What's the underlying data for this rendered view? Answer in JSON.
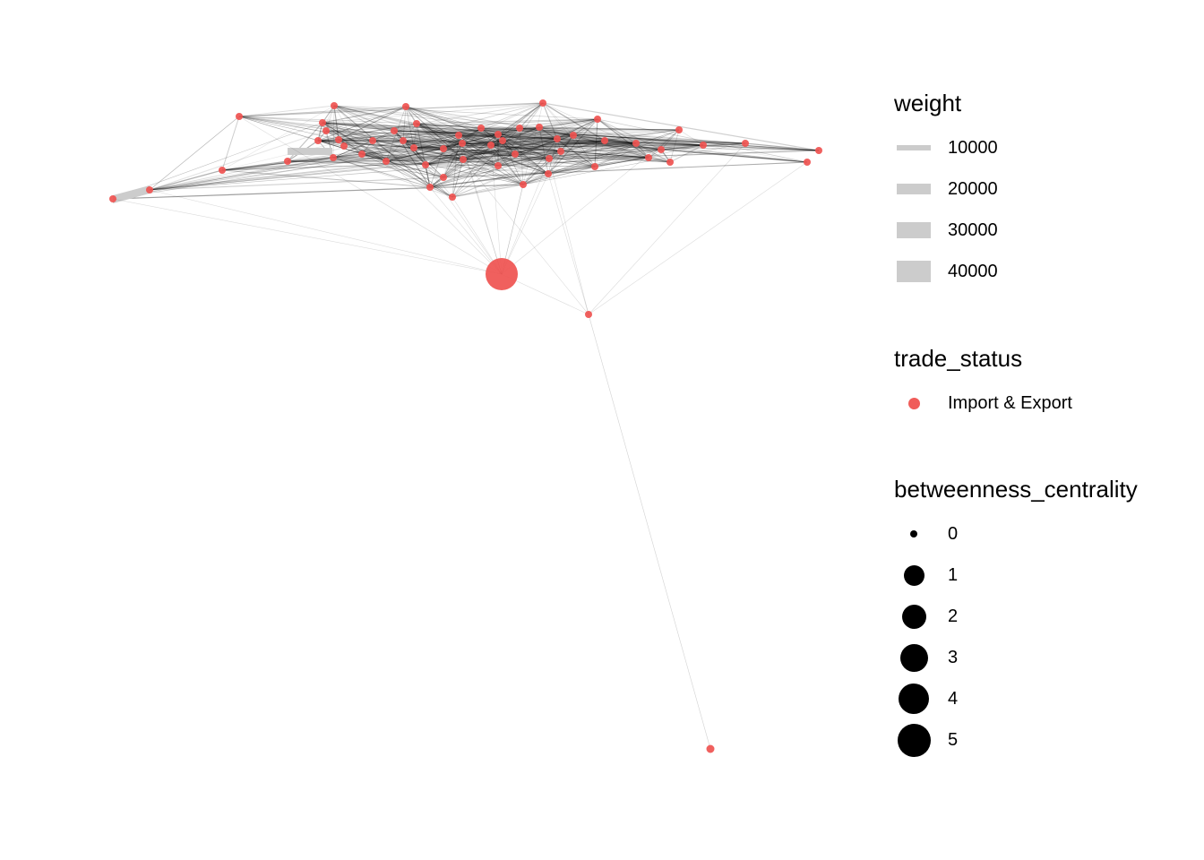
{
  "colors": {
    "node": "#ef5350",
    "edge": "#000000",
    "weight_legend": "#cccccc",
    "size_legend": "#000000"
  },
  "legend": {
    "weight": {
      "title": "weight",
      "items": [
        "10000",
        "20000",
        "30000",
        "40000"
      ]
    },
    "trade_status": {
      "title": "trade_status",
      "items": [
        "Import & Export"
      ]
    },
    "betweenness_centrality": {
      "title": "betweenness_centrality",
      "items": [
        "0",
        "1",
        "2",
        "3",
        "4",
        "5"
      ]
    }
  }
}
